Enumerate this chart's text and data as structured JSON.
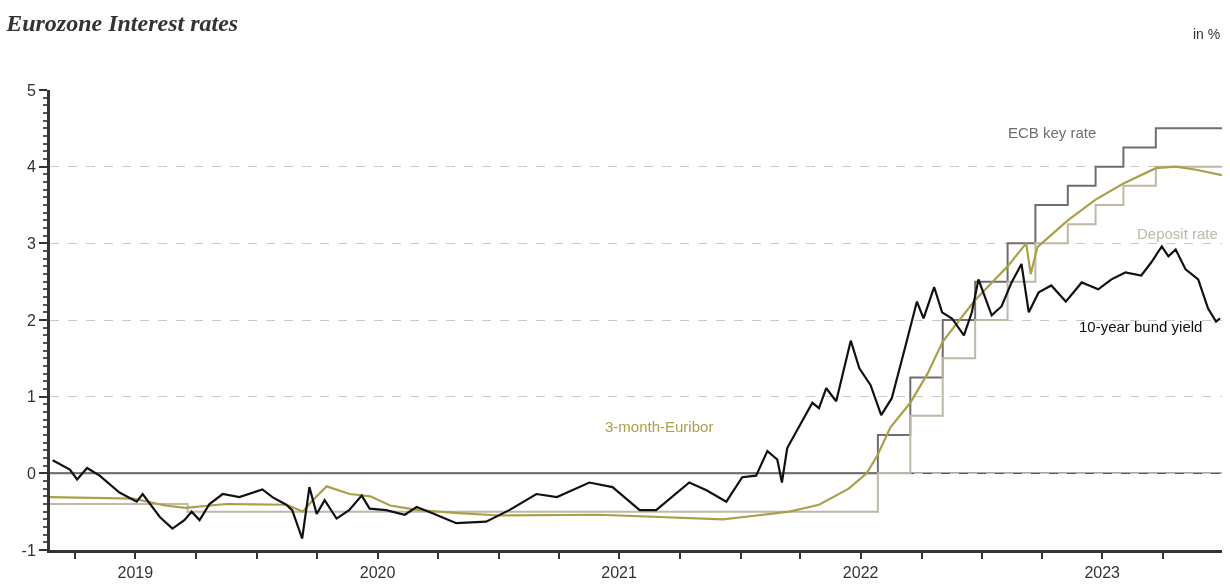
{
  "chart_data": {
    "type": "line",
    "title": "Eurozone Interest rates",
    "ylabel": "in %",
    "xlim": [
      "2019-02-22",
      "2023-12-29"
    ],
    "xticks": [
      {
        "value": "2019-04-01",
        "label": null
      },
      {
        "value": "2019-07-01",
        "label": "2019"
      },
      {
        "value": "2019-10-01",
        "label": null
      },
      {
        "value": "2020-01-01",
        "label": null
      },
      {
        "value": "2020-04-01",
        "label": null
      },
      {
        "value": "2020-07-01",
        "label": "2020"
      },
      {
        "value": "2020-10-01",
        "label": null
      },
      {
        "value": "2021-01-01",
        "label": null
      },
      {
        "value": "2021-04-01",
        "label": null
      },
      {
        "value": "2021-07-01",
        "label": "2021"
      },
      {
        "value": "2021-10-01",
        "label": null
      },
      {
        "value": "2022-01-01",
        "label": null
      },
      {
        "value": "2022-04-01",
        "label": null
      },
      {
        "value": "2022-07-01",
        "label": "2022"
      },
      {
        "value": "2022-10-01",
        "label": null
      },
      {
        "value": "2023-01-01",
        "label": null
      },
      {
        "value": "2023-04-01",
        "label": null
      },
      {
        "value": "2023-07-01",
        "label": "2023"
      },
      {
        "value": "2023-10-01",
        "label": null
      }
    ],
    "ylim": [
      -1,
      5
    ],
    "yticks": [
      -1,
      0,
      1,
      2,
      3,
      4,
      5
    ],
    "grid": "y",
    "legend": false,
    "marker": "none",
    "line_style": "solid",
    "ref_lines": [
      {
        "axis": "y",
        "value": 0,
        "color": "#555555"
      }
    ],
    "series": [
      {
        "name": "ECB key rate",
        "type": "step",
        "color": "#6e6e6e",
        "x": [
          "2019-02-22",
          "2022-07-27",
          "2022-09-14",
          "2022-11-02",
          "2022-12-21",
          "2023-02-08",
          "2023-03-22",
          "2023-05-10",
          "2023-06-21",
          "2023-08-02",
          "2023-09-20",
          "2023-12-29"
        ],
        "values": [
          0,
          0.5,
          1.25,
          2,
          2.5,
          3,
          3.5,
          3.75,
          4,
          4.25,
          4.5,
          4.5
        ]
      },
      {
        "name": "Deposit rate",
        "type": "step",
        "color": "#bdb8a8",
        "x": [
          "2019-02-22",
          "2019-09-18",
          "2022-07-27",
          "2022-09-14",
          "2022-11-02",
          "2022-12-21",
          "2023-02-08",
          "2023-03-22",
          "2023-05-10",
          "2023-06-21",
          "2023-08-02",
          "2023-09-20",
          "2023-12-29"
        ],
        "values": [
          -0.4,
          -0.5,
          0,
          0.75,
          1.5,
          2,
          2.5,
          3,
          3.25,
          3.5,
          3.75,
          4,
          4
        ]
      },
      {
        "name": "3-month-Euribor",
        "color": "#a9a14a",
        "x": [
          "2019-02-22",
          "2019-06-28",
          "2019-08-15",
          "2019-09-15",
          "2019-11-15",
          "2020-02-15",
          "2020-03-10",
          "2020-03-25",
          "2020-04-15",
          "2020-05-20",
          "2020-06-20",
          "2020-07-20",
          "2020-09-01",
          "2020-11-01",
          "2021-01-01",
          "2021-06-01",
          "2021-12-05",
          "2022-01-15",
          "2022-03-15",
          "2022-04-29",
          "2022-06-13",
          "2022-07-10",
          "2022-07-26",
          "2022-08-15",
          "2022-09-14",
          "2022-10-10",
          "2022-11-02",
          "2022-12-20",
          "2023-02-08",
          "2023-03-08",
          "2023-03-15",
          "2023-03-25",
          "2023-05-10",
          "2023-06-21",
          "2023-08-02",
          "2023-09-20",
          "2023-10-20",
          "2023-11-20",
          "2023-12-29"
        ],
        "values": [
          -0.31,
          -0.33,
          -0.42,
          -0.45,
          -0.4,
          -0.41,
          -0.5,
          -0.35,
          -0.17,
          -0.27,
          -0.3,
          -0.42,
          -0.48,
          -0.52,
          -0.55,
          -0.54,
          -0.6,
          -0.56,
          -0.5,
          -0.41,
          -0.2,
          0,
          0.23,
          0.6,
          0.92,
          1.3,
          1.72,
          2.25,
          2.7,
          3,
          2.6,
          2.95,
          3.3,
          3.57,
          3.78,
          3.98,
          4,
          3.96,
          3.89
        ]
      },
      {
        "name": "10-year bund yield",
        "color": "#111111",
        "x": [
          "2019-02-26",
          "2019-03-24",
          "2019-04-04",
          "2019-04-19",
          "2019-05-08",
          "2019-06-07",
          "2019-07-03",
          "2019-07-12",
          "2019-08-07",
          "2019-08-26",
          "2019-09-13",
          "2019-09-24",
          "2019-10-06",
          "2019-10-21",
          "2019-11-10",
          "2019-12-05",
          "2020-01-09",
          "2020-01-24",
          "2020-02-14",
          "2020-02-23",
          "2020-03-09",
          "2020-03-20",
          "2020-03-31",
          "2020-04-12",
          "2020-04-30",
          "2020-05-19",
          "2020-06-07",
          "2020-06-19",
          "2020-07-14",
          "2020-08-11",
          "2020-08-29",
          "2020-09-22",
          "2020-10-28",
          "2020-12-12",
          "2021-01-16",
          "2021-02-26",
          "2021-03-29",
          "2021-05-17",
          "2021-06-21",
          "2021-08-01",
          "2021-08-26",
          "2021-10-15",
          "2021-11-10",
          "2021-12-10",
          "2022-01-03",
          "2022-01-24",
          "2022-02-10",
          "2022-02-25",
          "2022-03-04",
          "2022-03-12",
          "2022-04-19",
          "2022-04-29",
          "2022-05-10",
          "2022-05-25",
          "2022-06-16",
          "2022-06-29",
          "2022-07-16",
          "2022-08-01",
          "2022-08-17",
          "2022-09-07",
          "2022-09-24",
          "2022-10-04",
          "2022-10-20",
          "2022-11-01",
          "2022-11-16",
          "2022-12-04",
          "2022-12-16",
          "2022-12-26",
          "2023-01-15",
          "2023-01-30",
          "2023-02-14",
          "2023-03-01",
          "2023-03-12",
          "2023-03-27",
          "2023-04-15",
          "2023-05-07",
          "2023-05-31",
          "2023-06-25",
          "2023-07-15",
          "2023-08-05",
          "2023-08-29",
          "2023-09-13",
          "2023-09-29",
          "2023-10-09",
          "2023-10-20",
          "2023-11-04",
          "2023-11-23",
          "2023-12-08",
          "2023-12-20",
          "2023-12-26"
        ],
        "values": [
          0.17,
          0.05,
          -0.08,
          0.07,
          -0.03,
          -0.25,
          -0.37,
          -0.27,
          -0.57,
          -0.72,
          -0.61,
          -0.5,
          -0.61,
          -0.4,
          -0.27,
          -0.31,
          -0.21,
          -0.31,
          -0.41,
          -0.48,
          -0.85,
          -0.18,
          -0.53,
          -0.35,
          -0.59,
          -0.48,
          -0.29,
          -0.46,
          -0.48,
          -0.54,
          -0.44,
          -0.52,
          -0.65,
          -0.63,
          -0.48,
          -0.27,
          -0.31,
          -0.12,
          -0.18,
          -0.48,
          -0.48,
          -0.12,
          -0.22,
          -0.37,
          -0.05,
          -0.03,
          0.29,
          0.18,
          -0.12,
          0.33,
          0.92,
          0.85,
          1.11,
          0.94,
          1.73,
          1.37,
          1.15,
          0.76,
          0.98,
          1.67,
          2.24,
          2.02,
          2.43,
          2.1,
          2.02,
          1.8,
          2.1,
          2.53,
          2.06,
          2.18,
          2.49,
          2.73,
          2.1,
          2.36,
          2.45,
          2.24,
          2.49,
          2.4,
          2.53,
          2.62,
          2.58,
          2.75,
          2.96,
          2.83,
          2.92,
          2.66,
          2.53,
          2.15,
          1.98,
          2.02
        ]
      }
    ]
  }
}
